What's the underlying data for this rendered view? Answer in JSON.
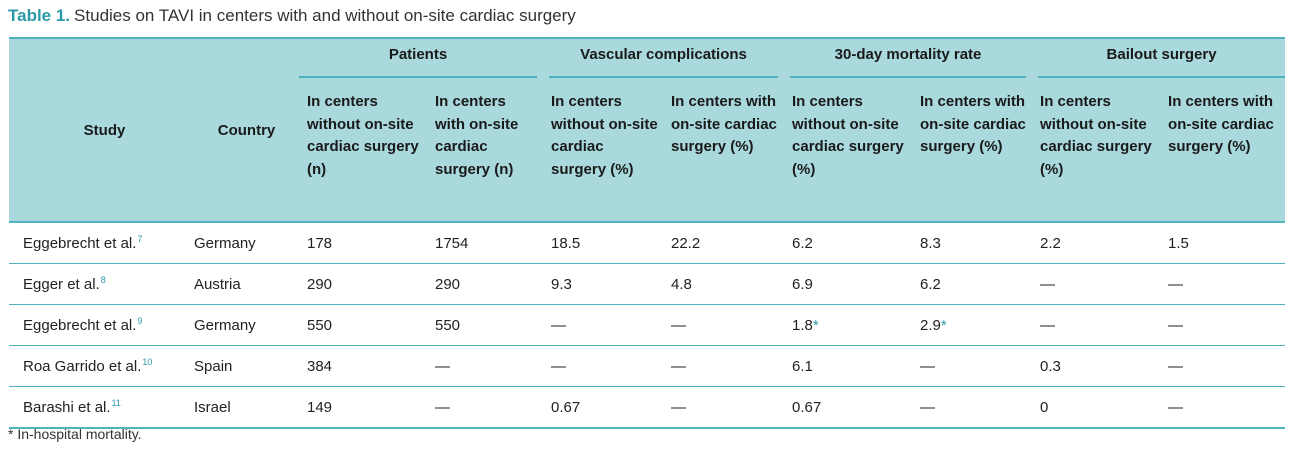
{
  "caption": {
    "label": "Table 1.",
    "text": "Studies on TAVI in centers with and without on-site cardiac surgery"
  },
  "headers": {
    "study": "Study",
    "country": "Country",
    "groups": [
      "Patients",
      "Vascular complications",
      "30-day mortality rate",
      "Bailout surgery"
    ],
    "subheaders": [
      "In centers without on-site cardiac surgery (n)",
      "In centers with on-site cardiac surgery (n)",
      "In centers without on-site cardiac surgery (%)",
      "In centers with on-site cardiac surgery (%)",
      "In centers without on-site cardiac surgery (%)",
      "In centers with on-site cardiac surgery (%)",
      "In centers without on-site cardiac surgery (%)",
      "In centers with on-site cardiac surgery (%)"
    ]
  },
  "rows": [
    {
      "study": "Eggebrecht et al.",
      "ref": "7",
      "country": "Germany",
      "values": [
        "178",
        "1754",
        "18.5",
        "22.2",
        "6.2",
        "8.3",
        "2.2",
        "1.5"
      ],
      "stars": [
        false,
        false,
        false,
        false,
        false,
        false,
        false,
        false
      ]
    },
    {
      "study": "Egger et al.",
      "ref": "8",
      "country": "Austria",
      "values": [
        "290",
        "290",
        "9.3",
        "4.8",
        "6.9",
        "6.2",
        "—",
        "—"
      ],
      "stars": [
        false,
        false,
        false,
        false,
        false,
        false,
        false,
        false
      ]
    },
    {
      "study": "Eggebrecht et al.",
      "ref": "9",
      "country": "Germany",
      "values": [
        "550",
        "550",
        "—",
        "—",
        "1.8",
        "2.9",
        "—",
        "—"
      ],
      "stars": [
        false,
        false,
        false,
        false,
        true,
        true,
        false,
        false
      ]
    },
    {
      "study": "Roa Garrido et al.",
      "ref": "10",
      "country": "Spain",
      "values": [
        "384",
        "—",
        "—",
        "—",
        "6.1",
        "—",
        "0.3",
        "—"
      ],
      "stars": [
        false,
        false,
        false,
        false,
        false,
        false,
        false,
        false
      ]
    },
    {
      "study": "Barashi et al.",
      "ref": "11",
      "country": "Israel",
      "values": [
        "149",
        "—",
        "0.67",
        "—",
        "0.67",
        "—",
        "0",
        "—"
      ],
      "stars": [
        false,
        false,
        false,
        false,
        false,
        false,
        false,
        false
      ]
    }
  ],
  "star_symbol": "*",
  "footnote": "* In-hospital mortality."
}
